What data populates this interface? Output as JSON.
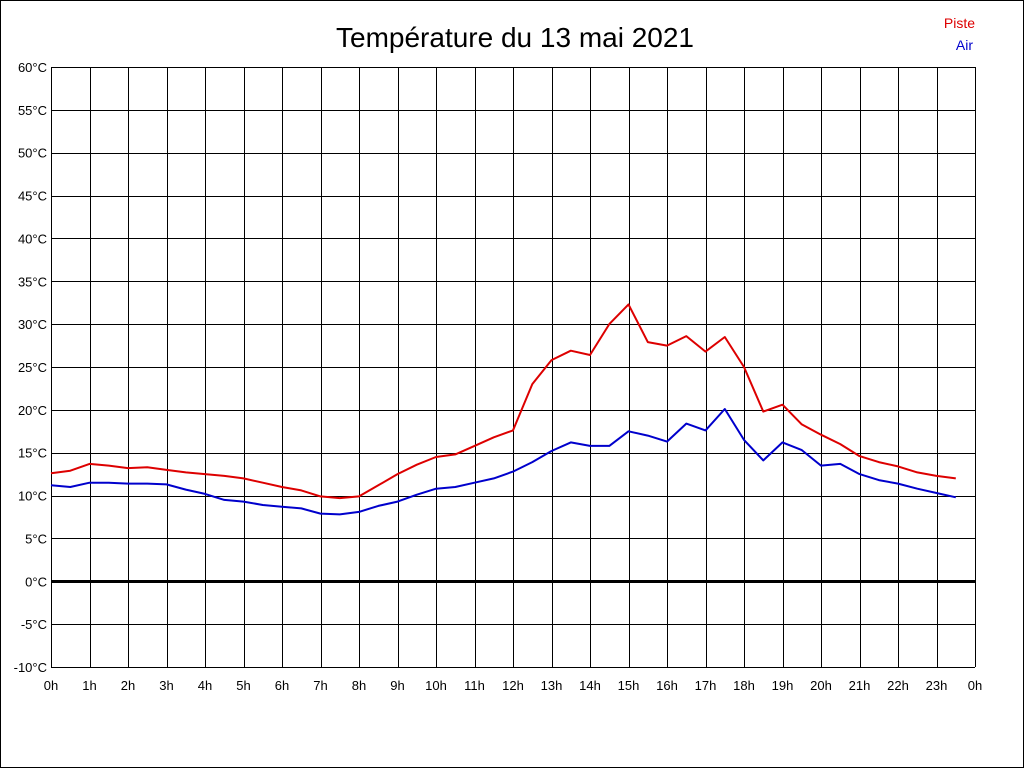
{
  "chart_data": {
    "type": "line",
    "title": "Température du 13 mai 2021",
    "xlabel": "",
    "ylabel": "",
    "x_tick_labels": [
      "0h",
      "1h",
      "2h",
      "3h",
      "4h",
      "5h",
      "6h",
      "7h",
      "8h",
      "9h",
      "10h",
      "11h",
      "12h",
      "13h",
      "14h",
      "15h",
      "16h",
      "17h",
      "18h",
      "19h",
      "20h",
      "21h",
      "22h",
      "23h",
      "0h"
    ],
    "y_tick_labels": [
      "-10°C",
      "-5°C",
      "0°C",
      "5°C",
      "10°C",
      "15°C",
      "20°C",
      "25°C",
      "30°C",
      "35°C",
      "40°C",
      "45°C",
      "50°C",
      "55°C",
      "60°C"
    ],
    "xlim": [
      0,
      24
    ],
    "ylim": [
      -10,
      60
    ],
    "grid": true,
    "legend_position": "top-right",
    "x": [
      0,
      0.5,
      1,
      1.5,
      2,
      2.5,
      3,
      3.5,
      4,
      4.5,
      5,
      5.5,
      6,
      6.5,
      7,
      7.5,
      8,
      8.5,
      9,
      9.5,
      10,
      10.5,
      11,
      11.5,
      12,
      12.5,
      13,
      13.5,
      14,
      14.5,
      15,
      15.5,
      16,
      16.5,
      17,
      17.5,
      18,
      18.5,
      19,
      19.5,
      20,
      20.5,
      21,
      21.5,
      22,
      22.5,
      23,
      23.5
    ],
    "series": [
      {
        "name": "Piste",
        "color": "#dd0000",
        "values": [
          12.6,
          12.9,
          13.7,
          13.5,
          13.2,
          13.3,
          13.0,
          12.7,
          12.5,
          12.3,
          12.0,
          11.5,
          11.0,
          10.6,
          9.9,
          9.7,
          9.9,
          11.2,
          12.5,
          13.6,
          14.5,
          14.8,
          15.8,
          16.8,
          17.6,
          23.0,
          25.8,
          26.9,
          26.4,
          30.0,
          32.3,
          27.9,
          27.5,
          28.6,
          26.8,
          28.5,
          25.0,
          19.8,
          20.6,
          18.3,
          17.1,
          16.0,
          14.6,
          13.9,
          13.4,
          12.7,
          12.3,
          12.0
        ]
      },
      {
        "name": "Air",
        "color": "#0000cc",
        "values": [
          11.2,
          11.0,
          11.5,
          11.5,
          11.4,
          11.4,
          11.3,
          10.7,
          10.2,
          9.5,
          9.3,
          8.9,
          8.7,
          8.5,
          7.9,
          7.8,
          8.1,
          8.8,
          9.3,
          10.1,
          10.8,
          11.0,
          11.5,
          12.0,
          12.8,
          13.9,
          15.2,
          16.2,
          15.8,
          15.8,
          17.5,
          17.0,
          16.3,
          18.4,
          17.6,
          20.1,
          16.5,
          14.1,
          16.2,
          15.3,
          13.5,
          13.7,
          12.5,
          11.8,
          11.4,
          10.8,
          10.3,
          9.8
        ]
      }
    ]
  }
}
